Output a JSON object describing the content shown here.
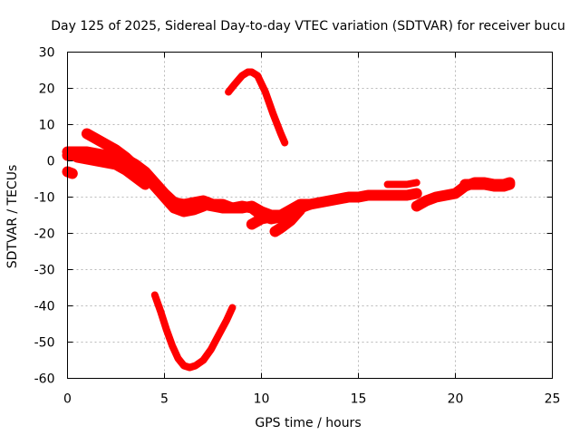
{
  "chart_data": {
    "type": "scatter",
    "title": "Day 125 of 2025, Sidereal Day-to-day VTEC variation (SDTVAR) for receiver bucu",
    "xlabel": "GPS time / hours",
    "ylabel": "SDTVAR / TECUs",
    "xlim": [
      0,
      25
    ],
    "ylim": [
      -60,
      30
    ],
    "xticks": [
      0,
      5,
      10,
      15,
      20,
      25
    ],
    "yticks": [
      30,
      20,
      10,
      0,
      -10,
      -20,
      -30,
      -40,
      -50,
      -60
    ],
    "grid": true,
    "legend": "none",
    "series_color": "#ff0000",
    "series": [
      {
        "name": "band-main-a",
        "band": 3,
        "x": [
          0.0,
          0.5,
          1.0,
          1.5,
          2.0,
          2.5,
          3.0,
          3.5,
          4.0,
          4.5,
          5.0,
          5.5,
          6.0,
          6.5,
          7.0,
          7.5,
          8.0,
          8.5,
          9.0,
          9.5,
          10.0,
          10.5,
          11.0,
          11.5,
          12.0,
          12.5,
          13.0,
          13.5,
          14.0,
          14.5,
          15.0,
          15.5,
          16.0,
          16.5,
          17.0,
          17.5,
          18.0
        ],
        "y": [
          2.5,
          2.5,
          2.5,
          2,
          1.5,
          1,
          0.5,
          -1,
          -3,
          -6,
          -9,
          -11.5,
          -12,
          -11.5,
          -11,
          -12,
          -12,
          -13,
          -13,
          -12.5,
          -14,
          -15,
          -15,
          -13.5,
          -12,
          -12,
          -11.5,
          -11,
          -10.5,
          -10,
          -10,
          -9.5,
          -9.5,
          -9.5,
          -9.5,
          -9.5,
          -9
        ]
      },
      {
        "name": "band-main-b",
        "band": 3,
        "x": [
          0.0,
          0.5,
          1.0,
          1.5,
          2.0,
          2.5,
          3.0,
          3.5,
          4.0,
          4.5,
          5.0,
          5.5,
          6.0,
          6.5,
          7.0,
          7.5,
          8.0,
          8.5,
          9.0,
          9.5,
          10.0,
          10.5,
          11.0,
          11.5,
          12.0
        ],
        "y": [
          1.5,
          1.5,
          1.5,
          1,
          0.5,
          0,
          -0.5,
          -2,
          -4,
          -7,
          -10,
          -13,
          -13.5,
          -12.5,
          -12,
          -12.5,
          -13,
          -13,
          -12.5,
          -13,
          -15,
          -16,
          -15.5,
          -14,
          -13
        ]
      },
      {
        "name": "segment-early-upper",
        "band": 3,
        "x": [
          1.0,
          1.5,
          2.0,
          2.5,
          3.0,
          3.5,
          4.0,
          4.5,
          5.0,
          5.5,
          6.0,
          6.5,
          7.0
        ],
        "y": [
          7.5,
          6,
          4.5,
          3,
          1,
          -1.5,
          -3.5,
          -6.5,
          -10,
          -13,
          -14,
          -13.5,
          -12.5
        ]
      },
      {
        "name": "segment-early-lower",
        "band": 3,
        "x": [
          0.5,
          1.0,
          1.5,
          2.0,
          2.5,
          3.0,
          3.5,
          4.0
        ],
        "y": [
          1,
          0.5,
          0,
          -0.5,
          -1,
          -2.5,
          -4.5,
          -6.5
        ]
      },
      {
        "name": "segment-start-point",
        "band": 3,
        "x": [
          0.0,
          0.25
        ],
        "y": [
          -3,
          -3.5
        ]
      },
      {
        "name": "segment-late-a",
        "band": 3,
        "x": [
          18.0,
          18.5,
          19.0,
          19.5,
          20.0,
          20.5,
          21.0,
          21.5,
          22.0,
          22.5,
          22.8
        ],
        "y": [
          -12.5,
          -11,
          -10,
          -9.5,
          -9,
          -7,
          -6,
          -6,
          -6.5,
          -6.5,
          -6
        ]
      },
      {
        "name": "segment-late-b",
        "band": 3,
        "x": [
          20.5,
          21.0,
          21.5,
          22.0,
          22.5,
          22.8
        ],
        "y": [
          -6.5,
          -6.5,
          -6.5,
          -7,
          -7,
          -6.5
        ]
      },
      {
        "name": "segment-late-c",
        "band": 2,
        "x": [
          16.5,
          17.0,
          17.5,
          18.0
        ],
        "y": [
          -6.5,
          -6.5,
          -6.5,
          -6
        ]
      },
      {
        "name": "segment-mid-rising",
        "band": 3,
        "x": [
          9.5,
          10.0,
          10.5,
          11.0,
          11.5,
          12.0,
          12.5
        ],
        "y": [
          -17.5,
          -16,
          -15.5,
          -15,
          -14,
          -13,
          -12
        ]
      },
      {
        "name": "segment-mid-rising-b",
        "band": 3,
        "x": [
          10.7,
          11.0,
          11.5,
          12.0
        ],
        "y": [
          -19.5,
          -18.5,
          -16.5,
          -13.5
        ]
      },
      {
        "name": "segment-high-arc",
        "band": 2,
        "x": [
          8.3,
          8.6,
          9.0,
          9.3,
          9.5,
          9.8,
          10.2,
          10.6,
          11.0,
          11.2
        ],
        "y": [
          19,
          21,
          23.5,
          24.5,
          24.5,
          23.5,
          19,
          13,
          7.5,
          5
        ]
      },
      {
        "name": "segment-low-arc",
        "band": 2,
        "x": [
          4.5,
          4.8,
          5.1,
          5.4,
          5.7,
          6.0,
          6.3,
          6.6,
          7.0,
          7.4,
          7.8,
          8.2,
          8.5
        ],
        "y": [
          -37,
          -41.5,
          -46.5,
          -51,
          -54.5,
          -56.5,
          -57,
          -56.5,
          -55,
          -52,
          -48,
          -44,
          -40.5
        ]
      }
    ]
  }
}
